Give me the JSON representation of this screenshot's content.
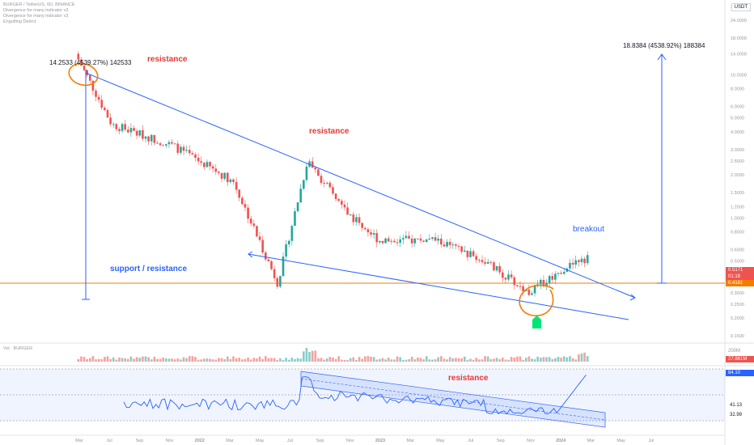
{
  "legend": {
    "symbol": "BURGER / TetherUS, 6D, BINANCE",
    "indicators": [
      "Divergence for many indicator v3",
      "Divergence for many indicator v3",
      "Engulfing Detect"
    ]
  },
  "currency_button": "USDT",
  "annotations": {
    "resistance_1": "resistance",
    "resistance_2": "resistance",
    "resistance_rsi": "resistance",
    "support_resistance": "support / resistance",
    "breakout": "breakout",
    "measure_left": "14.2533 (4539.27%) 142533",
    "measure_right": "18.8384 (4538.92%) 188384"
  },
  "price_tags": {
    "current": "0.5171",
    "countdown": "01:18",
    "support_level": "0.4181"
  },
  "volume": {
    "title": "Vol · BURGER",
    "value_tag": "27.861M",
    "axis_label": "200M"
  },
  "rsi": {
    "value_tag": "84.10",
    "levels": [
      "41.13",
      "32.99"
    ]
  },
  "colors": {
    "up": "#26a69a",
    "down": "#ef5350",
    "trendline": "#2962ff",
    "support": "#f57c00",
    "rsi_line": "#2962ff",
    "highlight": "#f57c00",
    "green_marker": "#00e676"
  },
  "chart_data": {
    "type": "candlestick",
    "x_ticks": [
      "Mar",
      "Jul",
      "Sep",
      "Nov",
      "2022",
      "Mar",
      "May",
      "Jul",
      "Sep",
      "Nov",
      "2023",
      "Mar",
      "May",
      "Jul",
      "Sep",
      "Nov",
      "2024",
      "Mar",
      "May",
      "Jul"
    ],
    "y_ticks": [
      "30.0000",
      "24.0000",
      "18.0000",
      "14.0000",
      "10.0000",
      "8.0000",
      "6.0000",
      "5.0000",
      "4.0000",
      "3.0000",
      "2.5000",
      "2.0000",
      "1.5000",
      "1.2000",
      "1.0000",
      "0.8000",
      "0.6000",
      "0.5000",
      "0.4000",
      "0.3000",
      "0.2500",
      "0.2000",
      "0.1500"
    ],
    "y_scale": "log",
    "series_trend": [
      {
        "period": "Mar 2021",
        "close": 14.0
      },
      {
        "period": "Jul 2021",
        "close": 4.5
      },
      {
        "period": "Nov 2021",
        "close": 3.2
      },
      {
        "period": "Mar 2022",
        "close": 1.8
      },
      {
        "period": "May 2022",
        "close": 0.35
      },
      {
        "period": "Jul 2022",
        "close": 2.5
      },
      {
        "period": "Sep 2022",
        "close": 1.1
      },
      {
        "period": "Nov 2022",
        "close": 0.7
      },
      {
        "period": "Mar 2023",
        "close": 0.7
      },
      {
        "period": "Jul 2023",
        "close": 0.5
      },
      {
        "period": "Sep 2023",
        "close": 0.3
      },
      {
        "period": "Nov 2023",
        "close": 0.45
      },
      {
        "period": "Dec 2023",
        "close": 0.5171
      }
    ],
    "support_level": 0.4181,
    "current_price": 0.5171
  }
}
